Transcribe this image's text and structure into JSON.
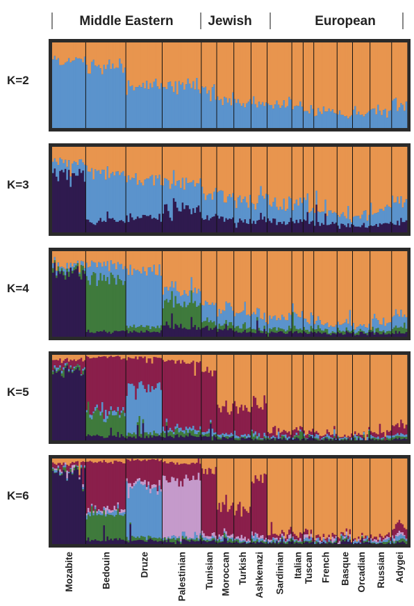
{
  "chart_data": {
    "type": "stacked-bar",
    "description": "ADMIXTURE-style ancestry proportions per individual, grouped by population, for K=2..6",
    "group_labels": [
      {
        "label": "Middle Eastern",
        "populations": [
          "Mozabite",
          "Bedouin",
          "Druze",
          "Palestinian"
        ]
      },
      {
        "label": "Jewish",
        "populations": [
          "Tunisian",
          "Moroccan",
          "Turkish",
          "Ashkenazi"
        ]
      },
      {
        "label": "European",
        "populations": [
          "Sardinian",
          "Italian",
          "Tuscan",
          "French",
          "Basque",
          "Orcadian",
          "Russian",
          "Adygei"
        ]
      }
    ],
    "populations": [
      "Mozabite",
      "Bedouin",
      "Druze",
      "Palestinian",
      "Tunisian",
      "Moroccan",
      "Turkish",
      "Ashkenazi",
      "Sardinian",
      "Italian",
      "Tuscan",
      "French",
      "Basque",
      "Orcadian",
      "Russian",
      "Adygei"
    ],
    "population_widths": [
      0.098,
      0.117,
      0.106,
      0.114,
      0.045,
      0.05,
      0.05,
      0.047,
      0.072,
      0.033,
      0.031,
      0.068,
      0.045,
      0.051,
      0.063,
      0.045
    ],
    "component_colors": {
      "orange": "#E8954E",
      "blue": "#5B93CC",
      "dark_purple": "#2F1A4F",
      "green": "#3F7A3C",
      "maroon": "#8A1F4B",
      "lilac": "#C59ACB"
    },
    "panels": [
      {
        "label": "K=2",
        "order": [
          "blue",
          "orange"
        ],
        "mean_proportions": [
          {
            "blue": 0.8,
            "orange": 0.2
          },
          {
            "blue": 0.72,
            "orange": 0.28
          },
          {
            "blue": 0.46,
            "orange": 0.54
          },
          {
            "blue": 0.47,
            "orange": 0.53
          },
          {
            "blue": 0.41,
            "orange": 0.59
          },
          {
            "blue": 0.37,
            "orange": 0.63
          },
          {
            "blue": 0.33,
            "orange": 0.67
          },
          {
            "blue": 0.3,
            "orange": 0.7
          },
          {
            "blue": 0.26,
            "orange": 0.74
          },
          {
            "blue": 0.24,
            "orange": 0.76
          },
          {
            "blue": 0.23,
            "orange": 0.77
          },
          {
            "blue": 0.18,
            "orange": 0.82
          },
          {
            "blue": 0.16,
            "orange": 0.84
          },
          {
            "blue": 0.16,
            "orange": 0.84
          },
          {
            "blue": 0.22,
            "orange": 0.78
          },
          {
            "blue": 0.29,
            "orange": 0.71
          }
        ]
      },
      {
        "label": "K=3",
        "order": [
          "dark_purple",
          "blue",
          "orange"
        ],
        "mean_proportions": [
          {
            "dark_purple": 0.68,
            "blue": 0.14,
            "orange": 0.18
          },
          {
            "dark_purple": 0.13,
            "blue": 0.58,
            "orange": 0.29
          },
          {
            "dark_purple": 0.16,
            "blue": 0.44,
            "orange": 0.4
          },
          {
            "dark_purple": 0.25,
            "blue": 0.32,
            "orange": 0.43
          },
          {
            "dark_purple": 0.18,
            "blue": 0.27,
            "orange": 0.55
          },
          {
            "dark_purple": 0.16,
            "blue": 0.26,
            "orange": 0.58
          },
          {
            "dark_purple": 0.13,
            "blue": 0.25,
            "orange": 0.62
          },
          {
            "dark_purple": 0.13,
            "blue": 0.23,
            "orange": 0.64
          },
          {
            "dark_purple": 0.13,
            "blue": 0.2,
            "orange": 0.67
          },
          {
            "dark_purple": 0.12,
            "blue": 0.2,
            "orange": 0.68
          },
          {
            "dark_purple": 0.12,
            "blue": 0.19,
            "orange": 0.69
          },
          {
            "dark_purple": 0.1,
            "blue": 0.14,
            "orange": 0.76
          },
          {
            "dark_purple": 0.09,
            "blue": 0.12,
            "orange": 0.79
          },
          {
            "dark_purple": 0.08,
            "blue": 0.12,
            "orange": 0.8
          },
          {
            "dark_purple": 0.09,
            "blue": 0.18,
            "orange": 0.73
          },
          {
            "dark_purple": 0.12,
            "blue": 0.24,
            "orange": 0.64
          }
        ]
      },
      {
        "label": "K=4",
        "order": [
          "dark_purple",
          "green",
          "blue",
          "orange"
        ],
        "mean_proportions": [
          {
            "dark_purple": 0.76,
            "green": 0.04,
            "blue": 0.04,
            "orange": 0.16
          },
          {
            "dark_purple": 0.06,
            "green": 0.62,
            "blue": 0.16,
            "orange": 0.16
          },
          {
            "dark_purple": 0.06,
            "green": 0.06,
            "blue": 0.65,
            "orange": 0.23
          },
          {
            "dark_purple": 0.12,
            "green": 0.28,
            "blue": 0.14,
            "orange": 0.46
          },
          {
            "dark_purple": 0.1,
            "green": 0.08,
            "blue": 0.2,
            "orange": 0.62
          },
          {
            "dark_purple": 0.08,
            "green": 0.06,
            "blue": 0.2,
            "orange": 0.66
          },
          {
            "dark_purple": 0.06,
            "green": 0.06,
            "blue": 0.17,
            "orange": 0.71
          },
          {
            "dark_purple": 0.06,
            "green": 0.04,
            "blue": 0.17,
            "orange": 0.73
          },
          {
            "dark_purple": 0.05,
            "green": 0.04,
            "blue": 0.14,
            "orange": 0.77
          },
          {
            "dark_purple": 0.05,
            "green": 0.04,
            "blue": 0.13,
            "orange": 0.78
          },
          {
            "dark_purple": 0.05,
            "green": 0.03,
            "blue": 0.12,
            "orange": 0.8
          },
          {
            "dark_purple": 0.04,
            "green": 0.03,
            "blue": 0.08,
            "orange": 0.85
          },
          {
            "dark_purple": 0.04,
            "green": 0.03,
            "blue": 0.07,
            "orange": 0.86
          },
          {
            "dark_purple": 0.03,
            "green": 0.02,
            "blue": 0.06,
            "orange": 0.89
          },
          {
            "dark_purple": 0.04,
            "green": 0.03,
            "blue": 0.1,
            "orange": 0.83
          },
          {
            "dark_purple": 0.05,
            "green": 0.06,
            "blue": 0.14,
            "orange": 0.75
          }
        ]
      },
      {
        "label": "K=5",
        "order": [
          "dark_purple",
          "green",
          "blue",
          "maroon",
          "orange"
        ],
        "mean_proportions": [
          {
            "dark_purple": 0.82,
            "green": 0.03,
            "blue": 0.02,
            "maroon": 0.07,
            "orange": 0.06
          },
          {
            "dark_purple": 0.05,
            "green": 0.26,
            "blue": 0.04,
            "maroon": 0.62,
            "orange": 0.03
          },
          {
            "dark_purple": 0.04,
            "green": 0.04,
            "blue": 0.56,
            "maroon": 0.32,
            "orange": 0.04
          },
          {
            "dark_purple": 0.05,
            "green": 0.05,
            "blue": 0.04,
            "maroon": 0.78,
            "orange": 0.08
          },
          {
            "dark_purple": 0.05,
            "green": 0.03,
            "blue": 0.03,
            "maroon": 0.7,
            "orange": 0.19
          },
          {
            "dark_purple": 0.03,
            "green": 0.02,
            "blue": 0.03,
            "maroon": 0.32,
            "orange": 0.6
          },
          {
            "dark_purple": 0.02,
            "green": 0.02,
            "blue": 0.03,
            "maroon": 0.3,
            "orange": 0.63
          },
          {
            "dark_purple": 0.02,
            "green": 0.02,
            "blue": 0.03,
            "maroon": 0.34,
            "orange": 0.59
          },
          {
            "dark_purple": 0.02,
            "green": 0.01,
            "blue": 0.02,
            "maroon": 0.05,
            "orange": 0.9
          },
          {
            "dark_purple": 0.02,
            "green": 0.01,
            "blue": 0.02,
            "maroon": 0.05,
            "orange": 0.9
          },
          {
            "dark_purple": 0.02,
            "green": 0.01,
            "blue": 0.02,
            "maroon": 0.05,
            "orange": 0.9
          },
          {
            "dark_purple": 0.01,
            "green": 0.01,
            "blue": 0.02,
            "maroon": 0.03,
            "orange": 0.93
          },
          {
            "dark_purple": 0.01,
            "green": 0.01,
            "blue": 0.02,
            "maroon": 0.02,
            "orange": 0.94
          },
          {
            "dark_purple": 0.01,
            "green": 0.01,
            "blue": 0.02,
            "maroon": 0.02,
            "orange": 0.94
          },
          {
            "dark_purple": 0.01,
            "green": 0.01,
            "blue": 0.02,
            "maroon": 0.04,
            "orange": 0.92
          },
          {
            "dark_purple": 0.02,
            "green": 0.02,
            "blue": 0.03,
            "maroon": 0.12,
            "orange": 0.81
          }
        ]
      },
      {
        "label": "K=6",
        "order": [
          "dark_purple",
          "green",
          "blue",
          "lilac",
          "maroon",
          "orange"
        ],
        "mean_proportions": [
          {
            "dark_purple": 0.84,
            "green": 0.02,
            "blue": 0.02,
            "lilac": 0.02,
            "maroon": 0.05,
            "orange": 0.05
          },
          {
            "dark_purple": 0.05,
            "green": 0.3,
            "blue": 0.03,
            "lilac": 0.03,
            "maroon": 0.55,
            "orange": 0.04
          },
          {
            "dark_purple": 0.04,
            "green": 0.04,
            "blue": 0.6,
            "lilac": 0.04,
            "maroon": 0.26,
            "orange": 0.02
          },
          {
            "dark_purple": 0.04,
            "green": 0.03,
            "blue": 0.02,
            "lilac": 0.68,
            "maroon": 0.18,
            "orange": 0.05
          },
          {
            "dark_purple": 0.04,
            "green": 0.02,
            "blue": 0.03,
            "lilac": 0.03,
            "maroon": 0.74,
            "orange": 0.14
          },
          {
            "dark_purple": 0.03,
            "green": 0.02,
            "blue": 0.02,
            "lilac": 0.03,
            "maroon": 0.37,
            "orange": 0.53
          },
          {
            "dark_purple": 0.02,
            "green": 0.02,
            "blue": 0.02,
            "lilac": 0.03,
            "maroon": 0.34,
            "orange": 0.57
          },
          {
            "dark_purple": 0.02,
            "green": 0.02,
            "blue": 0.02,
            "lilac": 0.03,
            "maroon": 0.68,
            "orange": 0.23
          },
          {
            "dark_purple": 0.01,
            "green": 0.01,
            "blue": 0.02,
            "lilac": 0.02,
            "maroon": 0.05,
            "orange": 0.89
          },
          {
            "dark_purple": 0.02,
            "green": 0.01,
            "blue": 0.02,
            "lilac": 0.02,
            "maroon": 0.06,
            "orange": 0.87
          },
          {
            "dark_purple": 0.02,
            "green": 0.01,
            "blue": 0.02,
            "lilac": 0.02,
            "maroon": 0.05,
            "orange": 0.88
          },
          {
            "dark_purple": 0.01,
            "green": 0.01,
            "blue": 0.02,
            "lilac": 0.01,
            "maroon": 0.03,
            "orange": 0.92
          },
          {
            "dark_purple": 0.01,
            "green": 0.01,
            "blue": 0.01,
            "lilac": 0.01,
            "maroon": 0.03,
            "orange": 0.93
          },
          {
            "dark_purple": 0.01,
            "green": 0.01,
            "blue": 0.02,
            "lilac": 0.01,
            "maroon": 0.02,
            "orange": 0.93
          },
          {
            "dark_purple": 0.01,
            "green": 0.01,
            "blue": 0.02,
            "lilac": 0.02,
            "maroon": 0.04,
            "orange": 0.9
          },
          {
            "dark_purple": 0.02,
            "green": 0.02,
            "blue": 0.04,
            "lilac": 0.03,
            "maroon": 0.1,
            "orange": 0.79
          }
        ]
      }
    ]
  }
}
